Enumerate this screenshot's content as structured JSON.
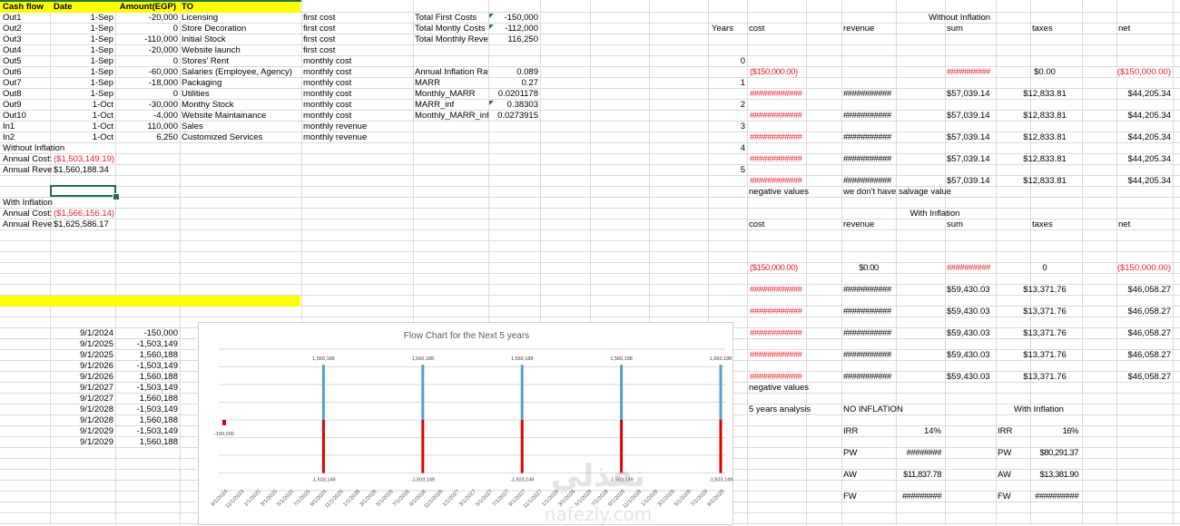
{
  "left_table": {
    "headers": {
      "cash_flow": "Cash flow",
      "date": "Date",
      "amount": "Amount(EGP)",
      "to": "TO"
    },
    "rows": [
      {
        "id": "Out1",
        "date": "1-Sep",
        "amount": "-20,000",
        "to": "Licensing",
        "type": "first cost"
      },
      {
        "id": "Out2",
        "date": "1-Sep",
        "amount": "0",
        "to": "Store Decoration",
        "type": "first cost"
      },
      {
        "id": "Out3",
        "date": "1-Sep",
        "amount": "-110,000",
        "to": "Initial Stock",
        "type": "first cost"
      },
      {
        "id": "Out4",
        "date": "1-Sep",
        "amount": "-20,000",
        "to": "Website launch",
        "type": "first cost"
      },
      {
        "id": "Out5",
        "date": "1-Sep",
        "amount": "0",
        "to": "Stores' Rent",
        "type": "monthly cost"
      },
      {
        "id": "Out6",
        "date": "1-Sep",
        "amount": "-60,000",
        "to": "Salaries (Employee, Agency)",
        "type": "monthly cost"
      },
      {
        "id": "Out7",
        "date": "1-Sep",
        "amount": "-18,000",
        "to": "Packaging",
        "type": "monthly cost"
      },
      {
        "id": "Out8",
        "date": "1-Sep",
        "amount": "0",
        "to": "Utilities",
        "type": "monthly cost"
      },
      {
        "id": "Out9",
        "date": "1-Oct",
        "amount": "-30,000",
        "to": "Monthy Stock",
        "type": "monthly cost"
      },
      {
        "id": "Out10",
        "date": "1-Oct",
        "amount": "-4,000",
        "to": "Website Maintainance",
        "type": "monthly cost"
      },
      {
        "id": "In1",
        "date": "1-Oct",
        "amount": "110,000",
        "to": "Sales",
        "type": "monthly revenue"
      },
      {
        "id": "In2",
        "date": "1-Oct",
        "amount": "6,250",
        "to": "Customized Services",
        "type": "monthly revenue"
      }
    ],
    "without_inflation": {
      "title": "Without Inflation",
      "cost_label": "Annual Cost:",
      "cost": "($1,503,149.19)",
      "rev_label": "Annual Reve",
      "rev": "$1,560,188.34"
    },
    "with_inflation": {
      "title": "With Inflation",
      "cost_label": "Annual Cost:",
      "cost": "($1,566,156.14)",
      "rev_label": "Annual Reve",
      "rev": "$1,625,586.17"
    }
  },
  "totals": [
    {
      "label": "Total First Costs",
      "value": "-150,000"
    },
    {
      "label": "Total Montly Costs",
      "value": "-112,000"
    },
    {
      "label": "Total Monthly Reve",
      "value": "116,250"
    }
  ],
  "rates": [
    {
      "label": "Annual Inflation Rat",
      "value": "0.089"
    },
    {
      "label": "MARR",
      "value": "0.27"
    },
    {
      "label": "Monthly_MARR",
      "value": "0.0201178"
    },
    {
      "label": "MARR_inf",
      "value": "0.38303"
    },
    {
      "label": "Monthly_MARR_inf",
      "value": "0.0273915"
    }
  ],
  "cashflow_list": [
    {
      "date": "9/1/2024",
      "amount": "-150,000"
    },
    {
      "date": "9/1/2025",
      "amount": "-1,503,149"
    },
    {
      "date": "9/1/2025",
      "amount": "1,560,188"
    },
    {
      "date": "9/1/2026",
      "amount": "-1,503,149"
    },
    {
      "date": "9/1/2026",
      "amount": "1,560,188"
    },
    {
      "date": "9/1/2027",
      "amount": "-1,503,149"
    },
    {
      "date": "9/1/2027",
      "amount": "1,560,188"
    },
    {
      "date": "9/1/2028",
      "amount": "-1,503,149"
    },
    {
      "date": "9/1/2028",
      "amount": "1,560,188"
    },
    {
      "date": "9/1/2029",
      "amount": "-1,503,149"
    },
    {
      "date": "9/1/2029",
      "amount": "1,560,188"
    }
  ],
  "without_inflation": {
    "title": "Without Inflation",
    "headers": {
      "years": "Years",
      "cost": "cost",
      "revenue": "revenue",
      "sum": "sum",
      "taxes": "taxes",
      "net": "net"
    },
    "rows": [
      {
        "year": "0",
        "cost": "($150,000.00)",
        "revenue": "",
        "sum": "##########",
        "taxes": "$0.00",
        "net": "($150,000.00)"
      },
      {
        "year": "1",
        "cost": "############",
        "revenue": "###########",
        "sum": "$57,039.14",
        "taxes": "$12,833.81",
        "net": "$44,205.34"
      },
      {
        "year": "2",
        "cost": "############",
        "revenue": "###########",
        "sum": "$57,039.14",
        "taxes": "$12,833.81",
        "net": "$44,205.34"
      },
      {
        "year": "3",
        "cost": "############",
        "revenue": "###########",
        "sum": "$57,039.14",
        "taxes": "$12,833.81",
        "net": "$44,205.34"
      },
      {
        "year": "4",
        "cost": "############",
        "revenue": "###########",
        "sum": "$57,039.14",
        "taxes": "$12,833.81",
        "net": "$44,205.34"
      },
      {
        "year": "5",
        "cost": "############",
        "revenue": "###########",
        "sum": "$57,039.14",
        "taxes": "$12,833.81",
        "net": "$44,205.34"
      }
    ],
    "note_cost": "negative values",
    "note_revenue": "we don't have salvage value"
  },
  "with_inflation": {
    "title": "With Inflation",
    "headers": {
      "cost": "cost",
      "revenue": "revenue",
      "sum": "sum",
      "taxes": "taxes",
      "net": "net"
    },
    "rows": [
      {
        "cost": "($150,000.00)",
        "revenue": "$0.00",
        "sum": "##########",
        "taxes": "0",
        "net": "($150,000.00)"
      },
      {
        "cost": "############",
        "revenue": "###########",
        "sum": "$59,430.03",
        "taxes": "$13,371.76",
        "net": "$46,058.27"
      },
      {
        "cost": "############",
        "revenue": "###########",
        "sum": "$59,430.03",
        "taxes": "$13,371.76",
        "net": "$46,058.27"
      },
      {
        "cost": "############",
        "revenue": "###########",
        "sum": "$59,430.03",
        "taxes": "$13,371.76",
        "net": "$46,058.27"
      },
      {
        "cost": "############",
        "revenue": "###########",
        "sum": "$59,430.03",
        "taxes": "$13,371.76",
        "net": "$46,058.27"
      },
      {
        "cost": "############",
        "revenue": "###########",
        "sum": "$59,430.03",
        "taxes": "$13,371.76",
        "net": "$46,058.27"
      }
    ],
    "note_cost": "negative values"
  },
  "analysis": {
    "label": "5 years analysis",
    "no_inflation": {
      "title": "NO INFLATION",
      "irr_label": "IRR",
      "irr": "14%",
      "pw_label": "PW",
      "pw": "########",
      "aw_label": "AW",
      "aw": "$11,837.78",
      "fw_label": "FW",
      "fw": "#########"
    },
    "with_inflation": {
      "title": "With Inflation",
      "irr_label": "IRR",
      "irr": "16%",
      "pw_label": "PW",
      "pw": "$80,291.37",
      "aw_label": "AW",
      "aw": "$13,381.90",
      "fw_label": "FW",
      "fw": "##########"
    }
  },
  "watermark": {
    "text_ar": "نفذلي",
    "text_en": "nafezly.com"
  },
  "colors": {
    "cost_bar": "#e00000",
    "revenue_bar": "#5b9bd5",
    "header_fill": "#ffff00",
    "negative_text": "#e8202a",
    "selection": "#217346"
  },
  "chart_data": {
    "type": "bar",
    "title": "Flow Chart for the Next 5 years",
    "xlabel": "",
    "ylabel": "",
    "ylim": [
      -2000000,
      2000000
    ],
    "grid": true,
    "legend": "none",
    "x_tick_labels": [
      "9/1/2024",
      "11/1/2024",
      "1/1/2025",
      "3/1/2025",
      "5/1/2025",
      "7/1/2025",
      "9/1/2025",
      "11/1/2025",
      "1/1/2026",
      "3/1/2026",
      "5/1/2026",
      "7/1/2026",
      "9/1/2026",
      "11/1/2026",
      "1/1/2027",
      "3/1/2027",
      "5/1/2027",
      "7/1/2027",
      "9/1/2027",
      "11/1/2027",
      "1/1/2028",
      "3/1/2028",
      "5/1/2028",
      "7/1/2028",
      "9/1/2028",
      "11/1/2028",
      "1/1/2029",
      "3/1/2029",
      "5/1/2029",
      "7/1/2029",
      "9/1/2029"
    ],
    "series": [
      {
        "color": "#e00000",
        "points": [
          {
            "x": "9/1/2024",
            "y": -150000,
            "label": "-150,000"
          },
          {
            "x": "9/1/2025",
            "y": -1503149,
            "label": "-1,503,149"
          },
          {
            "x": "9/1/2026",
            "y": -1503149,
            "label": "-1,503,149"
          },
          {
            "x": "9/1/2027",
            "y": -1503149,
            "label": "-1,503,149"
          },
          {
            "x": "9/1/2028",
            "y": -1503149,
            "label": "-1,503,149"
          },
          {
            "x": "9/1/2029",
            "y": -1503149,
            "label": "-1,503,149"
          }
        ]
      },
      {
        "color": "#5b9bd5",
        "points": [
          {
            "x": "9/1/2025",
            "y": 1560188,
            "label": "1,560,188"
          },
          {
            "x": "9/1/2026",
            "y": 1560188,
            "label": "1,560,188"
          },
          {
            "x": "9/1/2027",
            "y": 1560188,
            "label": "1,560,188"
          },
          {
            "x": "9/1/2028",
            "y": 1560188,
            "label": "1,560,188"
          },
          {
            "x": "9/1/2029",
            "y": 1560188,
            "label": "1,560,188"
          }
        ]
      }
    ]
  }
}
